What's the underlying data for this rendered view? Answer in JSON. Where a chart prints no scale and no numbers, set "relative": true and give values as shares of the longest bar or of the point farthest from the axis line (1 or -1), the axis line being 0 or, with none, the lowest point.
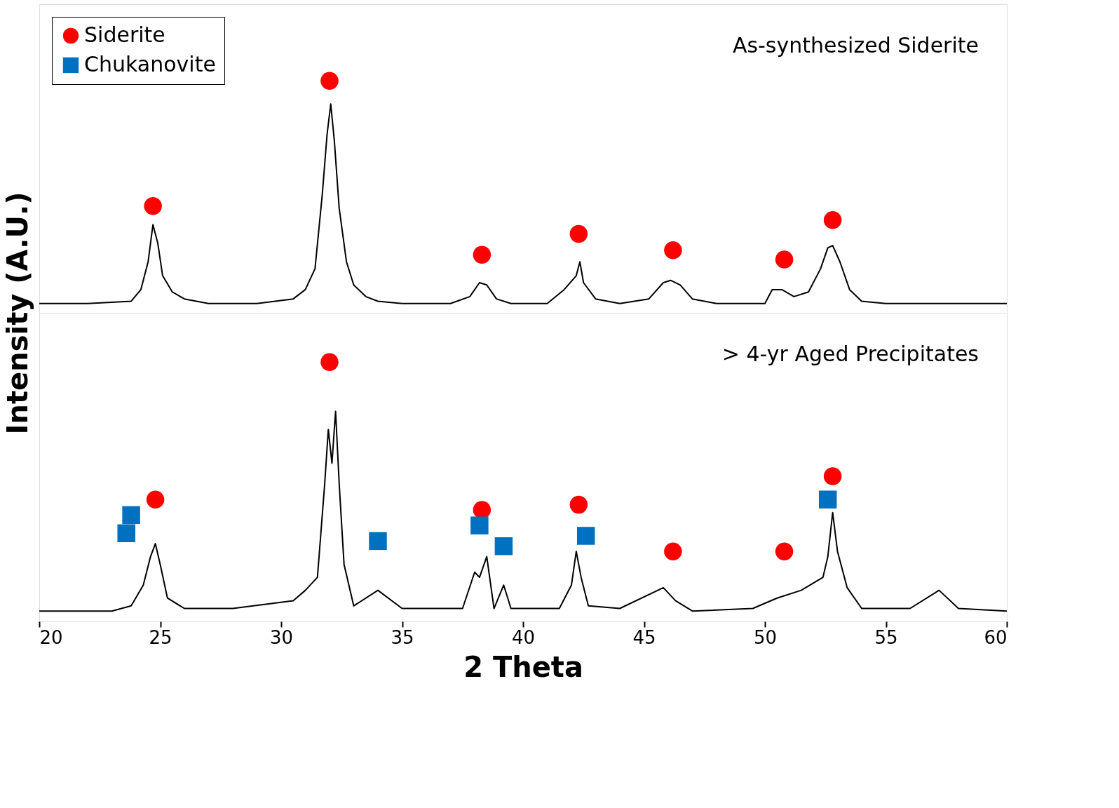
{
  "chart_data": [
    {
      "type": "line",
      "relative": true,
      "ylabel": "Intensity (A.U.)",
      "xlim": [
        20,
        60
      ],
      "tick_labels": false,
      "grid": false,
      "legend": "top left",
      "annotations": [
        "As-synthesized Siderite"
      ],
      "series": [
        {
          "color": "#000000",
          "marker": "none",
          "line_style": "solid",
          "x": [
            20,
            22,
            23.8,
            24.2,
            24.5,
            24.7,
            24.9,
            25.1,
            25.5,
            26,
            27,
            29,
            30.5,
            31,
            31.4,
            31.7,
            31.9,
            32.05,
            32.2,
            32.4,
            32.7,
            33,
            33.5,
            34,
            35,
            37,
            37.8,
            38.2,
            38.5,
            38.9,
            39.5,
            41,
            41.7,
            42.2,
            42.35,
            42.5,
            43,
            44,
            45.2,
            45.8,
            46.1,
            46.5,
            47,
            48,
            50,
            50.3,
            50.7,
            51.2,
            51.8,
            52.3,
            52.6,
            52.8,
            53.1,
            53.5,
            54,
            55,
            58,
            60
          ],
          "values": [
            0.04,
            0.04,
            0.05,
            0.1,
            0.22,
            0.38,
            0.3,
            0.16,
            0.09,
            0.06,
            0.04,
            0.04,
            0.06,
            0.1,
            0.19,
            0.51,
            0.77,
            0.9,
            0.74,
            0.45,
            0.22,
            0.12,
            0.07,
            0.05,
            0.04,
            0.04,
            0.07,
            0.13,
            0.12,
            0.06,
            0.04,
            0.04,
            0.1,
            0.16,
            0.22,
            0.13,
            0.06,
            0.04,
            0.06,
            0.13,
            0.14,
            0.12,
            0.06,
            0.04,
            0.04,
            0.1,
            0.1,
            0.07,
            0.09,
            0.19,
            0.28,
            0.29,
            0.22,
            0.1,
            0.05,
            0.04,
            0.04,
            0.04
          ]
        },
        {
          "type": "scatter",
          "name": "Siderite",
          "color": "#ff0000",
          "marker": "circle",
          "x": [
            24.7,
            32,
            38.3,
            42.3,
            46.2,
            50.8,
            52.8
          ],
          "values": [
            0.46,
            1.0,
            0.25,
            0.34,
            0.27,
            0.23,
            0.4
          ]
        }
      ]
    },
    {
      "type": "line",
      "relative": true,
      "xlabel": "2 Theta",
      "xlim": [
        20,
        60
      ],
      "xticks": [
        20,
        25,
        30,
        35,
        40,
        45,
        50,
        55,
        60
      ],
      "tick_labels": "x",
      "grid": false,
      "annotations": [
        "> 4-yr Aged Precipitates"
      ],
      "series": [
        {
          "color": "#000000",
          "marker": "none",
          "line_style": "solid",
          "x": [
            20,
            23,
            23.8,
            24.3,
            24.6,
            24.8,
            25,
            25.3,
            26,
            28,
            30.5,
            31,
            31.5,
            31.8,
            31.95,
            32.1,
            32.25,
            32.4,
            32.6,
            33,
            34,
            35,
            37.5,
            38,
            38.2,
            38.5,
            38.8,
            39.2,
            39.5,
            41.5,
            42,
            42.2,
            42.4,
            42.7,
            44,
            45.8,
            46.3,
            47,
            49.5,
            50.5,
            51.5,
            52.4,
            52.6,
            52.8,
            53,
            53.4,
            54,
            56,
            57.2,
            58,
            60
          ],
          "values": [
            0.04,
            0.04,
            0.06,
            0.14,
            0.25,
            0.3,
            0.22,
            0.09,
            0.05,
            0.05,
            0.08,
            0.12,
            0.17,
            0.53,
            0.74,
            0.61,
            0.81,
            0.53,
            0.22,
            0.06,
            0.12,
            0.05,
            0.05,
            0.19,
            0.17,
            0.25,
            0.05,
            0.14,
            0.05,
            0.05,
            0.14,
            0.27,
            0.17,
            0.06,
            0.05,
            0.13,
            0.08,
            0.04,
            0.05,
            0.09,
            0.12,
            0.17,
            0.25,
            0.42,
            0.27,
            0.13,
            0.05,
            0.05,
            0.12,
            0.05,
            0.04
          ]
        },
        {
          "type": "scatter",
          "name": "Siderite",
          "color": "#ff0000",
          "marker": "circle",
          "x": [
            24.8,
            32,
            38.3,
            42.3,
            46.2,
            50.8,
            52.8
          ],
          "values": [
            0.47,
            1.0,
            0.43,
            0.45,
            0.27,
            0.27,
            0.56
          ]
        },
        {
          "type": "scatter",
          "name": "Chukanovite",
          "color": "#0070c0",
          "marker": "square",
          "x": [
            23.6,
            23.8,
            34,
            38.2,
            39.2,
            42.6,
            52.6
          ],
          "values": [
            0.34,
            0.41,
            0.31,
            0.37,
            0.29,
            0.33,
            0.47
          ]
        }
      ]
    }
  ]
}
